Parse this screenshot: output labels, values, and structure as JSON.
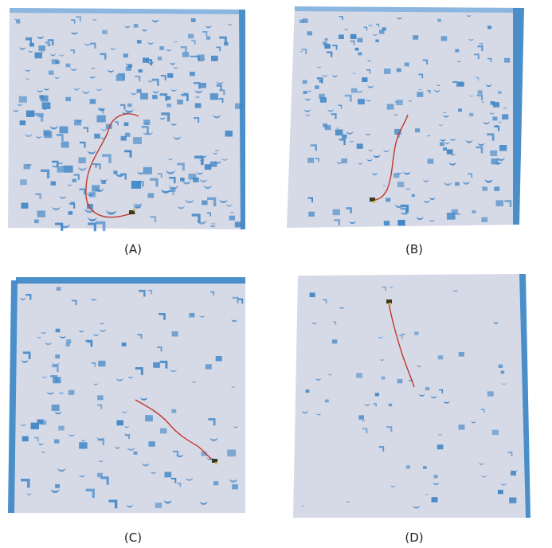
{
  "figure": {
    "panels": [
      {
        "label": "(A)",
        "obstacle_density": "high",
        "trajectory": "curved"
      },
      {
        "label": "(B)",
        "obstacle_density": "medium-high",
        "trajectory": "diagonal"
      },
      {
        "label": "(C)",
        "obstacle_density": "medium",
        "trajectory": "diagonal"
      },
      {
        "label": "(D)",
        "obstacle_density": "low",
        "trajectory": "straight"
      }
    ],
    "colors": {
      "floor": "#d6d9e6",
      "wall": "#4a8fc9",
      "obstacle": "#3f86c6",
      "trajectory": "#c0392b",
      "robot": "#3a3a22"
    }
  }
}
